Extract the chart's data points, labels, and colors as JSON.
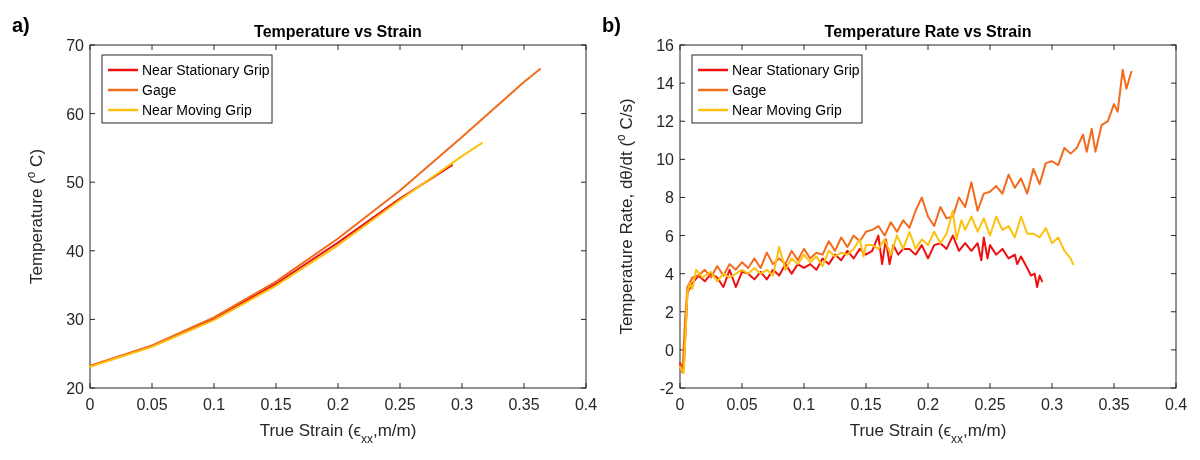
{
  "chart_data": [
    {
      "type": "line",
      "title": "Temperature vs Strain",
      "xlabel": "True Strain (ϵ$_{xx}$,m/m)",
      "ylabel": "Temperature ($^{o}$ C)",
      "annotations": [
        "a)"
      ],
      "xlim": [
        0,
        0.4
      ],
      "xticks": [
        0,
        0.05,
        0.1,
        0.15,
        0.2,
        0.25,
        0.3,
        0.35,
        0.4
      ],
      "ylim": [
        20,
        70
      ],
      "yticks": [
        20,
        30,
        40,
        50,
        60,
        70
      ],
      "grid": false,
      "legend": "top left",
      "line_style": "solid",
      "series": [
        {
          "name": "Near Stationary Grip",
          "color": "#ee1111",
          "x": [
            0,
            0.05,
            0.1,
            0.15,
            0.2,
            0.25,
            0.292
          ],
          "values": [
            23.2,
            26.1,
            30.1,
            35.2,
            41.2,
            47.6,
            52.5
          ]
        },
        {
          "name": "Gage",
          "color": "#f26b1d",
          "x": [
            0,
            0.05,
            0.1,
            0.15,
            0.2,
            0.25,
            0.3,
            0.35,
            0.363
          ],
          "values": [
            23.2,
            26.2,
            30.3,
            35.5,
            41.8,
            48.8,
            56.6,
            64.6,
            66.5
          ]
        },
        {
          "name": "Near Moving Grip",
          "color": "#fcc20f",
          "x": [
            0,
            0.05,
            0.1,
            0.15,
            0.2,
            0.25,
            0.3,
            0.316
          ],
          "values": [
            23.1,
            26.0,
            29.9,
            34.9,
            40.8,
            47.4,
            53.8,
            55.7
          ]
        }
      ]
    },
    {
      "type": "line",
      "title": "Temperature Rate vs Strain",
      "xlabel": "True Strain (ϵ$_{xx}$,m/m)",
      "ylabel": "Temperature Rate, dθ/dt ($^{o}$ C/s)",
      "annotations": [
        "b)"
      ],
      "xlim": [
        0,
        0.4
      ],
      "xticks": [
        0,
        0.05,
        0.1,
        0.15,
        0.2,
        0.25,
        0.3,
        0.35,
        0.4
      ],
      "ylim": [
        -2,
        16
      ],
      "yticks": [
        -2,
        0,
        2,
        4,
        6,
        8,
        10,
        12,
        14,
        16
      ],
      "grid": false,
      "legend": "top left",
      "line_style": "solid",
      "series": [
        {
          "name": "Near Stationary Grip",
          "color": "#ee1111",
          "x": [
            0,
            0.003,
            0.006,
            0.01,
            0.015,
            0.02,
            0.025,
            0.03,
            0.035,
            0.04,
            0.045,
            0.05,
            0.055,
            0.06,
            0.065,
            0.07,
            0.075,
            0.08,
            0.085,
            0.09,
            0.095,
            0.1,
            0.105,
            0.11,
            0.115,
            0.12,
            0.125,
            0.13,
            0.135,
            0.14,
            0.145,
            0.15,
            0.155,
            0.16,
            0.163,
            0.166,
            0.169,
            0.172,
            0.176,
            0.18,
            0.185,
            0.19,
            0.195,
            0.2,
            0.205,
            0.21,
            0.215,
            0.22,
            0.225,
            0.23,
            0.235,
            0.24,
            0.243,
            0.245,
            0.248,
            0.25,
            0.255,
            0.26,
            0.265,
            0.27,
            0.272,
            0.275,
            0.28,
            0.283,
            0.286,
            0.288,
            0.29,
            0.292
          ],
          "values": [
            -0.7,
            -1,
            3.0,
            3.5,
            3.9,
            3.6,
            4.0,
            3.8,
            3.3,
            4.2,
            3.3,
            4.1,
            4.0,
            3.7,
            4.1,
            3.7,
            4.2,
            3.9,
            4.5,
            4.0,
            4.5,
            4.3,
            4.5,
            4.2,
            4.8,
            4.5,
            5.0,
            4.7,
            5.2,
            4.8,
            5.3,
            5.0,
            5.2,
            6.0,
            4.5,
            5.8,
            4.5,
            5.5,
            5.0,
            5.3,
            5.3,
            5.0,
            5.5,
            4.8,
            5.5,
            5.6,
            5.3,
            6.0,
            5.2,
            5.6,
            5.2,
            5.6,
            4.7,
            5.9,
            4.8,
            5.5,
            5.0,
            5.3,
            4.8,
            5.0,
            4.5,
            4.9,
            4.3,
            3.9,
            4.0,
            3.3,
            3.9,
            3.6
          ]
        },
        {
          "name": "Gage",
          "color": "#f26b1d",
          "x": [
            0,
            0.002,
            0.004,
            0.006,
            0.01,
            0.015,
            0.02,
            0.025,
            0.03,
            0.035,
            0.04,
            0.045,
            0.05,
            0.055,
            0.06,
            0.065,
            0.07,
            0.075,
            0.08,
            0.085,
            0.09,
            0.095,
            0.1,
            0.105,
            0.11,
            0.115,
            0.12,
            0.125,
            0.13,
            0.135,
            0.14,
            0.145,
            0.15,
            0.155,
            0.16,
            0.165,
            0.17,
            0.175,
            0.18,
            0.185,
            0.19,
            0.195,
            0.2,
            0.205,
            0.21,
            0.215,
            0.22,
            0.225,
            0.23,
            0.235,
            0.24,
            0.245,
            0.25,
            0.255,
            0.26,
            0.265,
            0.27,
            0.275,
            0.28,
            0.285,
            0.29,
            0.295,
            0.3,
            0.305,
            0.31,
            0.315,
            0.32,
            0.325,
            0.328,
            0.332,
            0.335,
            0.34,
            0.345,
            0.35,
            0.353,
            0.357,
            0.36,
            0.364
          ],
          "values": [
            -0.8,
            -1.2,
            1.5,
            3.3,
            3.8,
            3.9,
            4.2,
            3.8,
            4.4,
            3.9,
            4.5,
            4.2,
            4.6,
            4.3,
            4.8,
            4.3,
            5.1,
            4.5,
            4.8,
            4.5,
            5.2,
            4.7,
            5.3,
            4.8,
            5.1,
            5.0,
            5.7,
            5.2,
            5.9,
            5.4,
            6.0,
            5.7,
            6.2,
            6.3,
            6.5,
            6.0,
            6.7,
            6.2,
            6.8,
            6.4,
            7.3,
            8.0,
            7.0,
            6.5,
            7.5,
            6.9,
            7.0,
            8.0,
            7.5,
            8.8,
            7.3,
            8.2,
            8.3,
            8.6,
            8.2,
            9.2,
            8.5,
            9.0,
            8.2,
            9.5,
            8.7,
            9.8,
            9.9,
            9.7,
            10.6,
            10.3,
            10.6,
            11.3,
            10.4,
            11.6,
            10.4,
            11.8,
            12.0,
            12.9,
            12.5,
            14.7,
            13.7,
            14.6
          ]
        },
        {
          "name": "Near Moving Grip",
          "color": "#fcc20f",
          "x": [
            0,
            0.003,
            0.006,
            0.008,
            0.01,
            0.013,
            0.018,
            0.025,
            0.03,
            0.035,
            0.04,
            0.05,
            0.055,
            0.06,
            0.065,
            0.07,
            0.075,
            0.08,
            0.085,
            0.09,
            0.095,
            0.1,
            0.105,
            0.11,
            0.115,
            0.12,
            0.125,
            0.13,
            0.135,
            0.14,
            0.145,
            0.148,
            0.15,
            0.155,
            0.16,
            0.165,
            0.17,
            0.175,
            0.18,
            0.185,
            0.19,
            0.195,
            0.2,
            0.205,
            0.21,
            0.215,
            0.22,
            0.223,
            0.227,
            0.23,
            0.235,
            0.24,
            0.245,
            0.25,
            0.255,
            0.26,
            0.265,
            0.27,
            0.275,
            0.28,
            0.285,
            0.29,
            0.295,
            0.3,
            0.305,
            0.31,
            0.315,
            0.317
          ],
          "values": [
            -0.9,
            -1.2,
            3.0,
            3.5,
            3.2,
            4.2,
            3.8,
            4.1,
            3.6,
            4.0,
            3.8,
            4.2,
            4.0,
            4.3,
            4.0,
            4.2,
            3.9,
            5.4,
            4.2,
            4.8,
            4.5,
            5.0,
            4.6,
            4.9,
            4.4,
            5.2,
            4.9,
            5.1,
            5.0,
            5.3,
            5.8,
            4.9,
            5.5,
            5.5,
            5.3,
            5.8,
            5.0,
            6.0,
            5.3,
            6.2,
            5.3,
            5.8,
            5.5,
            6.2,
            5.6,
            6.1,
            7.3,
            5.8,
            6.8,
            6.3,
            7.0,
            6.2,
            6.9,
            6.0,
            7.0,
            6.3,
            6.5,
            5.9,
            7.0,
            6.1,
            6.1,
            5.9,
            6.4,
            5.6,
            5.9,
            5.2,
            4.8,
            4.5
          ]
        }
      ]
    }
  ]
}
